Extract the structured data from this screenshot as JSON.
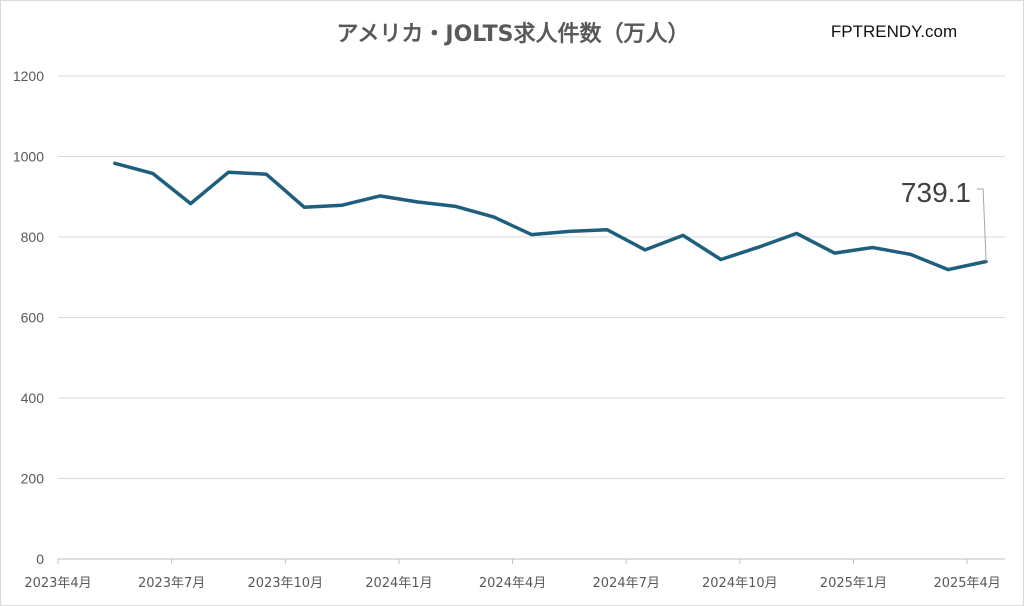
{
  "watermark": "FPTRENDY.com",
  "chart_data": {
    "type": "line",
    "title": "アメリカ・JOLTS求人件数（万人）",
    "xlabel": "",
    "ylabel": "",
    "ylim": [
      0,
      1200
    ],
    "yticks": [
      0,
      200,
      400,
      600,
      800,
      1000,
      1200
    ],
    "grid": true,
    "legend": "none",
    "x_tick_labels": [
      "2023年4月",
      "2023年7月",
      "2023年10月",
      "2024年1月",
      "2024年4月",
      "2024年7月",
      "2024年10月",
      "2025年1月",
      "2025年4月"
    ],
    "series": [
      {
        "color": "#1f5f7d",
        "x": [
          "2023年5月",
          "2023年6月",
          "2023年7月",
          "2023年8月",
          "2023年9月",
          "2023年10月",
          "2023年11月",
          "2023年12月",
          "2024年1月",
          "2024年2月",
          "2024年3月",
          "2024年4月",
          "2024年5月",
          "2024年6月",
          "2024年7月",
          "2024年8月",
          "2024年9月",
          "2024年10月",
          "2024年11月",
          "2024年12月",
          "2025年1月",
          "2025年2月",
          "2025年3月",
          "2025年4月"
        ],
        "values": [
          983,
          958,
          883,
          961,
          956,
          874,
          879,
          902,
          887,
          876,
          850,
          806,
          814,
          818,
          768,
          804,
          744,
          775,
          809,
          760,
          774,
          757,
          719,
          739.1
        ]
      }
    ],
    "data_label": "739.1"
  }
}
